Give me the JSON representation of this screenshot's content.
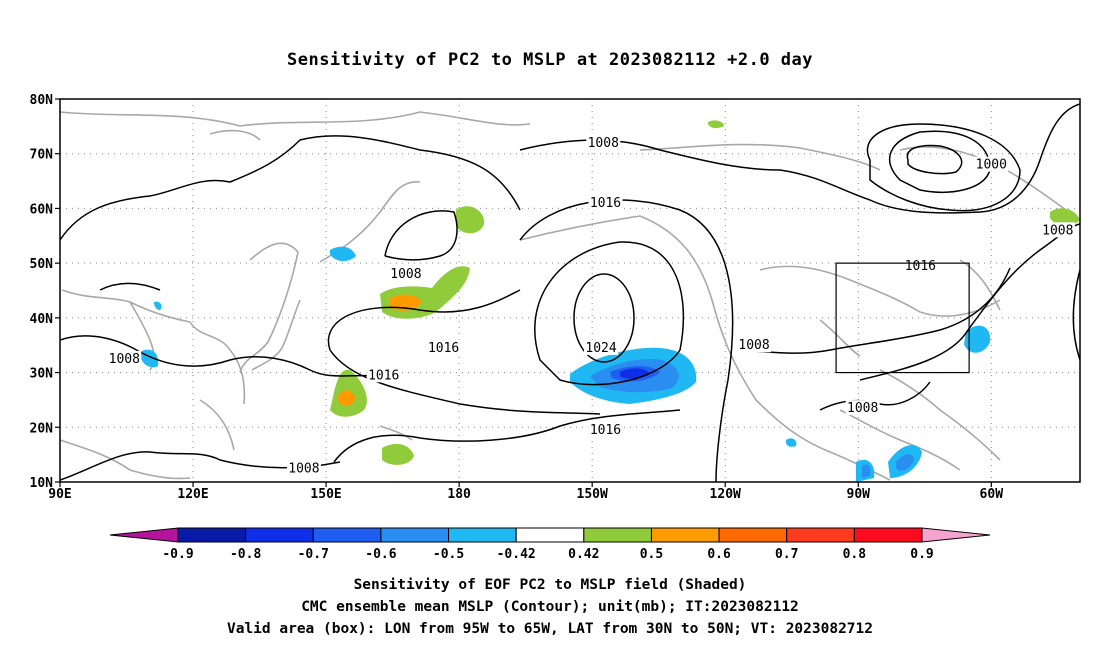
{
  "title": "Sensitivity of PC2 to MSLP at 2023082112 +2.0 day",
  "map": {
    "lat_labels": [
      "80N",
      "70N",
      "60N",
      "50N",
      "40N",
      "30N",
      "20N",
      "10N"
    ],
    "lon_labels": [
      "90E",
      "120E",
      "150E",
      "180",
      "150W",
      "120W",
      "90W",
      "60W"
    ],
    "lat_values": [
      80,
      70,
      60,
      50,
      40,
      30,
      20,
      10
    ],
    "lon_values": [
      90,
      120,
      150,
      180,
      210,
      240,
      270,
      300
    ],
    "extent": {
      "lon_min": 90,
      "lon_max": 320,
      "lat_min": 10,
      "lat_max": 80
    },
    "grid": "dotted",
    "contour_labels": [
      {
        "text": "1008",
        "lon": 212.5,
        "lat": 72
      },
      {
        "text": "1000",
        "lon": 300,
        "lat": 68
      },
      {
        "text": "1008",
        "lon": 315,
        "lat": 56
      },
      {
        "text": "1016",
        "lon": 213,
        "lat": 61
      },
      {
        "text": "1008",
        "lon": 168,
        "lat": 48
      },
      {
        "text": "1016",
        "lon": 284,
        "lat": 49.5
      },
      {
        "text": "1016",
        "lon": 176.5,
        "lat": 34.5
      },
      {
        "text": "1024",
        "lon": 212,
        "lat": 34.5
      },
      {
        "text": "1008",
        "lon": 246.5,
        "lat": 35
      },
      {
        "text": "1008",
        "lon": 104.5,
        "lat": 32.5
      },
      {
        "text": "1016",
        "lon": 163,
        "lat": 29.5
      },
      {
        "text": "1008",
        "lon": 271,
        "lat": 23.5
      },
      {
        "text": "1016",
        "lon": 213,
        "lat": 19.5
      },
      {
        "text": "1008",
        "lon": 145,
        "lat": 12.5
      }
    ],
    "valid_box": {
      "lon_min": 265,
      "lon_max": 295,
      "lat_min": 30,
      "lat_max": 50
    }
  },
  "colorbar": {
    "labels": [
      "-0.9",
      "-0.8",
      "-0.7",
      "-0.6",
      "-0.5",
      "-0.42",
      "0.42",
      "0.5",
      "0.6",
      "0.7",
      "0.8",
      "0.9"
    ],
    "colors": [
      "#0a1aa8",
      "#0e2ee8",
      "#1e5ef0",
      "#2a8ef0",
      "#1fb8f2",
      "#ffffff",
      "#8fcb3a",
      "#ff9a00",
      "#ff6a00",
      "#ff3b1f",
      "#ff0a1e"
    ],
    "low_color": "#b5149a",
    "high_color": "#f5a3cf"
  },
  "footer": {
    "line1": "Sensitivity of EOF PC2 to MSLP field (Shaded)",
    "line2": "CMC ensemble mean MSLP (Contour); unit(mb); IT:2023082112",
    "line3": "Valid area (box): LON from 95W to 65W, LAT from 30N to 50N; VT: 2023082712"
  }
}
